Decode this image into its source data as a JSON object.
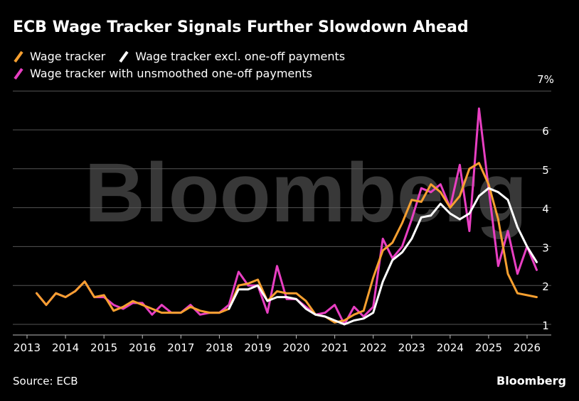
{
  "title": "ECB Wage Tracker Signals Further Slowdown Ahead",
  "source": "Source: ECB",
  "brand": "Bloomberg",
  "watermark": "Bloomberg",
  "colors": {
    "wage_tracker": "#f7a030",
    "excl_one_off": "#ffffff",
    "unsmoothed": "#e83fc2",
    "grid": "#555555",
    "background": "#000000"
  },
  "legend": [
    {
      "label": "Wage tracker",
      "color": "#f7a030"
    },
    {
      "label": "Wage tracker excl. one-off payments",
      "color": "#ffffff"
    },
    {
      "label": "Wage tracker with unsmoothed one-off payments",
      "color": "#e83fc2"
    }
  ],
  "chart_data": {
    "type": "line",
    "xlabel": "",
    "ylabel": "",
    "xlim": [
      2013.0,
      2026.6
    ],
    "ylim": [
      0.75,
      7.0
    ],
    "x_ticks": [
      "2013",
      "2014",
      "2015",
      "2016",
      "2017",
      "2018",
      "2019",
      "2020",
      "2021",
      "2022",
      "2023",
      "2024",
      "2025",
      "2026"
    ],
    "y_ticks": [
      "7%",
      "6",
      "5",
      "4",
      "3",
      "2",
      "1"
    ],
    "y_tick_values": [
      7,
      6,
      5,
      4,
      3,
      2,
      1
    ],
    "series": [
      {
        "name": "Wage tracker with unsmoothed one-off payments",
        "color": "#e83fc2",
        "x": [
          2013.25,
          2013.5,
          2013.75,
          2014.0,
          2014.25,
          2014.5,
          2014.75,
          2015.0,
          2015.25,
          2015.5,
          2015.75,
          2016.0,
          2016.25,
          2016.5,
          2016.75,
          2017.0,
          2017.25,
          2017.5,
          2017.75,
          2018.0,
          2018.25,
          2018.5,
          2018.75,
          2019.0,
          2019.25,
          2019.5,
          2019.75,
          2020.0,
          2020.25,
          2020.5,
          2020.75,
          2021.0,
          2021.25,
          2021.5,
          2021.75,
          2022.0,
          2022.25,
          2022.5,
          2022.75,
          2023.0,
          2023.25,
          2023.5,
          2023.75,
          2024.0,
          2024.25,
          2024.5,
          2024.75,
          2025.0,
          2025.25,
          2025.5,
          2025.75,
          2026.0,
          2026.25
        ],
        "values": [
          1.8,
          1.5,
          1.8,
          1.7,
          1.85,
          2.1,
          1.7,
          1.7,
          1.5,
          1.4,
          1.55,
          1.55,
          1.25,
          1.5,
          1.3,
          1.3,
          1.5,
          1.25,
          1.3,
          1.3,
          1.5,
          2.35,
          2.0,
          2.0,
          1.3,
          2.5,
          1.65,
          1.65,
          1.45,
          1.25,
          1.3,
          1.5,
          1.0,
          1.45,
          1.2,
          1.45,
          3.2,
          2.7,
          3.0,
          3.7,
          4.5,
          4.4,
          4.6,
          4.0,
          5.1,
          3.4,
          6.55,
          4.5,
          2.5,
          3.4,
          2.3,
          3.0,
          2.4
        ]
      },
      {
        "name": "Wage tracker",
        "color": "#f7a030",
        "x": [
          2013.25,
          2013.5,
          2013.75,
          2014.0,
          2014.25,
          2014.5,
          2014.75,
          2015.0,
          2015.25,
          2015.5,
          2015.75,
          2016.0,
          2016.25,
          2016.5,
          2016.75,
          2017.0,
          2017.25,
          2017.5,
          2017.75,
          2018.0,
          2018.25,
          2018.5,
          2018.75,
          2019.0,
          2019.25,
          2019.5,
          2019.75,
          2020.0,
          2020.25,
          2020.5,
          2020.75,
          2021.0,
          2021.25,
          2021.5,
          2021.75,
          2022.0,
          2022.25,
          2022.5,
          2022.75,
          2023.0,
          2023.25,
          2023.5,
          2023.75,
          2024.0,
          2024.25,
          2024.5,
          2024.75,
          2025.0,
          2025.25,
          2025.5,
          2025.75,
          2026.0,
          2026.25
        ],
        "values": [
          1.8,
          1.5,
          1.8,
          1.7,
          1.85,
          2.1,
          1.7,
          1.75,
          1.35,
          1.45,
          1.6,
          1.5,
          1.4,
          1.3,
          1.3,
          1.3,
          1.45,
          1.35,
          1.3,
          1.3,
          1.4,
          2.0,
          2.05,
          2.15,
          1.6,
          1.85,
          1.8,
          1.8,
          1.6,
          1.25,
          1.2,
          1.05,
          1.1,
          1.25,
          1.35,
          2.2,
          2.9,
          3.1,
          3.6,
          4.2,
          4.15,
          4.6,
          4.4,
          4.0,
          4.3,
          5.0,
          5.15,
          4.6,
          3.7,
          2.3,
          1.8,
          1.75,
          1.7
        ]
      },
      {
        "name": "Wage tracker excl. one-off payments",
        "color": "#ffffff",
        "x": [
          2018.25,
          2018.5,
          2018.75,
          2019.0,
          2019.25,
          2019.5,
          2019.75,
          2020.0,
          2020.25,
          2020.5,
          2020.75,
          2021.0,
          2021.25,
          2021.5,
          2021.75,
          2022.0,
          2022.25,
          2022.5,
          2022.75,
          2023.0,
          2023.25,
          2023.5,
          2023.75,
          2024.0,
          2024.25,
          2024.5,
          2024.75,
          2025.0,
          2025.25,
          2025.5,
          2025.75,
          2026.0,
          2026.25
        ],
        "values": [
          1.4,
          1.9,
          1.9,
          2.0,
          1.6,
          1.7,
          1.7,
          1.65,
          1.4,
          1.25,
          1.2,
          1.1,
          1.0,
          1.1,
          1.15,
          1.3,
          2.1,
          2.65,
          2.85,
          3.2,
          3.75,
          3.8,
          4.1,
          3.85,
          3.7,
          3.85,
          4.3,
          4.5,
          4.4,
          4.2,
          3.5,
          3.0,
          2.6
        ]
      }
    ]
  }
}
